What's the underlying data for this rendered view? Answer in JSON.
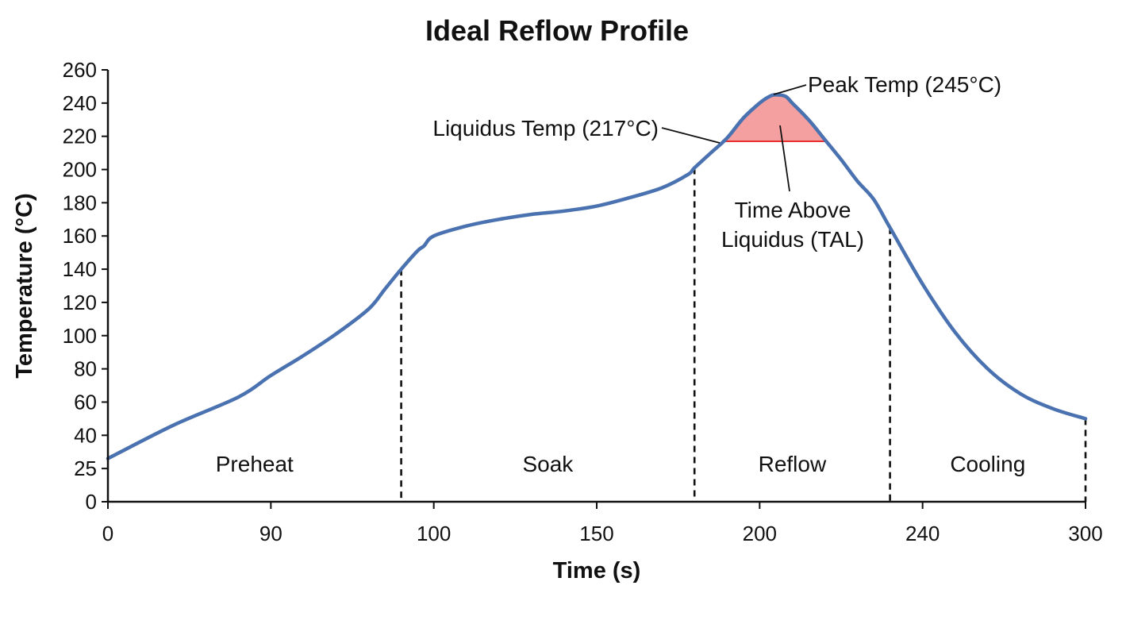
{
  "chart_data": {
    "type": "line",
    "title": "Ideal Reflow Profile",
    "xlabel": "Time (s)",
    "ylabel": "Temperature (°C)",
    "x_tick_labels": [
      "0",
      "90",
      "100",
      "150",
      "200",
      "240",
      "300"
    ],
    "y_tick_labels": [
      "0",
      "25",
      "40",
      "60",
      "80",
      "100",
      "120",
      "140",
      "160",
      "180",
      "200",
      "220",
      "240",
      "260"
    ],
    "ylim": [
      0,
      260
    ],
    "grid": false,
    "series": [
      {
        "color": "#4a72b0",
        "points": [
          [
            0,
            26
          ],
          [
            20,
            46
          ],
          [
            40,
            63
          ],
          [
            50,
            76
          ],
          [
            60,
            88
          ],
          [
            70,
            101
          ],
          [
            80,
            116
          ],
          [
            85,
            128
          ],
          [
            90,
            140
          ],
          [
            95,
            151
          ],
          [
            97,
            154
          ],
          [
            100,
            160
          ],
          [
            110,
            166
          ],
          [
            120,
            170
          ],
          [
            130,
            173
          ],
          [
            140,
            175
          ],
          [
            150,
            178
          ],
          [
            160,
            183
          ],
          [
            170,
            189
          ],
          [
            178,
            197
          ],
          [
            180,
            201
          ],
          [
            185,
            210
          ],
          [
            190,
            219
          ],
          [
            195,
            231
          ],
          [
            200,
            240
          ],
          [
            203,
            244
          ],
          [
            205,
            245
          ],
          [
            208,
            244
          ],
          [
            210,
            240
          ],
          [
            215,
            230
          ],
          [
            220,
            218
          ],
          [
            225,
            206
          ],
          [
            230,
            193
          ],
          [
            235,
            182
          ],
          [
            240,
            165
          ],
          [
            250,
            131
          ],
          [
            260,
            102
          ],
          [
            270,
            80
          ],
          [
            280,
            65
          ],
          [
            290,
            56
          ],
          [
            300,
            50
          ]
        ]
      }
    ],
    "phases": [
      {
        "label": "Preheat",
        "start": 0,
        "end": 90
      },
      {
        "label": "Soak",
        "start": 90,
        "end": 180
      },
      {
        "label": "Reflow",
        "start": 180,
        "end": 240
      },
      {
        "label": "Cooling",
        "start": 240,
        "end": 300
      }
    ],
    "phase_boundaries": [
      90,
      180,
      240,
      300
    ],
    "liquidus": {
      "value": 217,
      "label": "Liquidus Temp (217°C)",
      "color": "#e8302e"
    },
    "peak": {
      "value": 245,
      "label": "Peak Temp (245°C)"
    },
    "tal": {
      "line1": "Time Above",
      "line2": "Liquidus (TAL)",
      "fill": "#f4a0a0"
    }
  }
}
